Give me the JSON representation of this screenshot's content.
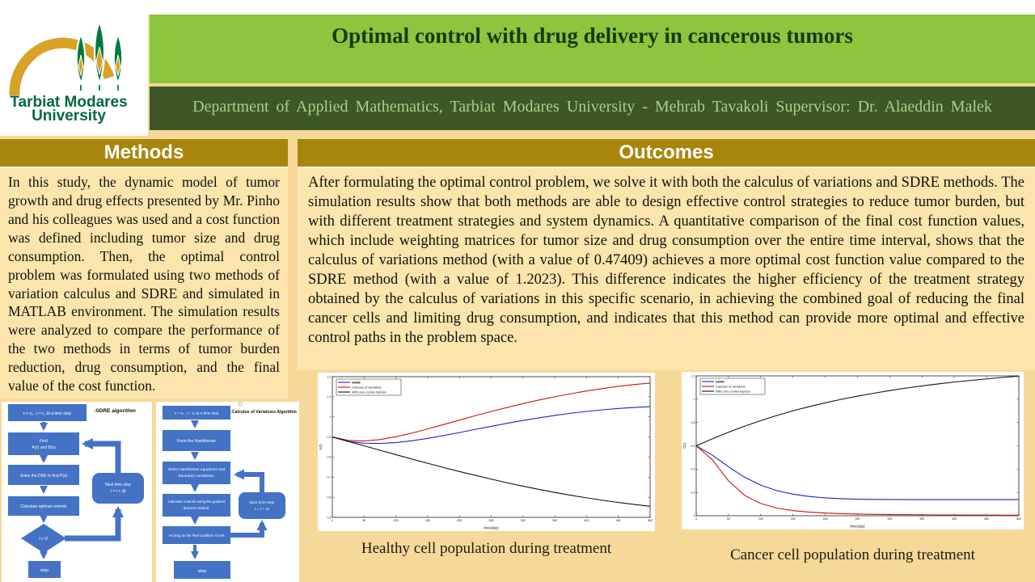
{
  "logo": {
    "line1": "Tarbiat Modares",
    "line2": "University"
  },
  "header": {
    "title": "Optimal control with drug delivery in cancerous tumors",
    "subtitle": "Department of Applied Mathematics, Tarbiat Modares University - Mehrab Tavakoli Supervisor: Dr. Alaeddin Malek",
    "title_bg": "#8cc63e",
    "subtitle_bg": "#3d5826",
    "section_header_bg": "#a8860d"
  },
  "methods": {
    "heading": "Methods",
    "body": "In this study, the dynamic model of tumor growth and drug effects presented by Mr. Pinho and his colleagues was used and a cost function was defined including tumor size and drug consumption. Then, the optimal control problem was formulated using two methods of variation calculus and SDRE and simulated in MATLAB environment. The simulation results were analyzed to compare the performance of the two methods in terms of tumor burden reduction, drug consumption, and the final value of the cost function."
  },
  "outcomes": {
    "heading": "Outcomes",
    "body": "After formulating the optimal control problem, we solve it with both the calculus of variations and SDRE methods. The simulation results show that both methods are able to design effective control strategies to reduce tumor burden, but with different treatment strategies and system dynamics. A quantitative comparison of the final cost function values, which include weighting matrices for tumor size and drug consumption over the entire time interval, shows that the calculus of variations method (with a value of 0.47409) achieves a more optimal cost function value compared to the SDRE method (with a value of 1.2023). This difference indicates the higher efficiency of the treatment strategy obtained by the calculus of variations in this specific scenario, in achieving the combined goal of reducing the final cancer cells and limiting drug consumption, and indicates that this method can provide more optimal and effective control paths in the problem space."
  },
  "flowcharts": {
    "box_color": "#4472c4",
    "sdre": {
      "title": ":SDRE algorithm",
      "init": "x = x₀ , t = t₀  Δt a time step",
      "step1a": "Find",
      "step1b": "A(x) and B(x)",
      "step2": "Solve the DRE to find P(x)",
      "step3": "Calculate optimal controls",
      "decision": "t < tƒ",
      "loop1": "Next time step",
      "loop2": "t = t + Δt",
      "stop": "stop"
    },
    "cov": {
      "title": ":Calculus of Variations Algorithm",
      "init": "x = x₀ , t = t₀  Δt a time step",
      "step1": "Form the Hamiltonian",
      "step2a": "Solve Hamiltonian equations and",
      "step2b": "boundary conditions.",
      "step3a": "Calculate controls using the gradient",
      "step3b": "descent method.",
      "step4": "As long as the final condition is met",
      "loop1": "Next time step",
      "loop2": "t = t + Δt",
      "stop": "stop"
    }
  },
  "chart_data": [
    {
      "type": "line",
      "title": "Healthy cell population during treatment",
      "xlabel": "time(day)",
      "ylabel": "N(t)",
      "xlim": [
        0,
        500
      ],
      "ylim": [
        0.5,
        1.2
      ],
      "xticks": [
        0,
        50,
        100,
        150,
        200,
        250,
        300,
        350,
        400,
        450,
        500
      ],
      "yticks": [
        0.5,
        0.6,
        0.7,
        0.8,
        0.9,
        1,
        1.1,
        1.2
      ],
      "legend_position": "upper left",
      "grid": false,
      "x": [
        0,
        25,
        50,
        75,
        100,
        125,
        150,
        175,
        200,
        225,
        250,
        275,
        300,
        325,
        350,
        375,
        400,
        425,
        450,
        475,
        500
      ],
      "series": [
        {
          "name": "SDRE",
          "color": "#2020cc",
          "values": [
            0.9,
            0.878,
            0.869,
            0.868,
            0.872,
            0.881,
            0.893,
            0.907,
            0.922,
            0.938,
            0.953,
            0.968,
            0.982,
            0.995,
            1.007,
            1.018,
            1.027,
            1.035,
            1.042,
            1.047,
            1.051
          ]
        },
        {
          "name": "Calculus of variations",
          "color": "#cc1212",
          "values": [
            0.9,
            0.883,
            0.88,
            0.887,
            0.901,
            0.919,
            0.94,
            0.962,
            0.984,
            1.006,
            1.027,
            1.047,
            1.066,
            1.084,
            1.1,
            1.115,
            1.129,
            1.141,
            1.152,
            1.161,
            1.168
          ]
        },
        {
          "name": "With zero control fashion",
          "color": "#111111",
          "values": [
            0.9,
            0.878,
            0.856,
            0.834,
            0.812,
            0.79,
            0.769,
            0.748,
            0.728,
            0.709,
            0.69,
            0.672,
            0.655,
            0.639,
            0.624,
            0.61,
            0.597,
            0.585,
            0.574,
            0.564,
            0.555
          ]
        }
      ]
    },
    {
      "type": "line",
      "title": "Cancer cell population during treatment",
      "xlabel": "time(day)",
      "ylabel": "C(t)",
      "xlim": [
        0,
        500
      ],
      "ylim": [
        0,
        1.2
      ],
      "xticks": [
        0,
        50,
        100,
        150,
        200,
        250,
        300,
        350,
        400,
        450,
        500
      ],
      "yticks": [
        0,
        0.2,
        0.4,
        0.6,
        0.8,
        1,
        1.2
      ],
      "legend_position": "upper left",
      "grid": false,
      "x": [
        0,
        25,
        50,
        75,
        100,
        125,
        150,
        175,
        200,
        225,
        250,
        275,
        300,
        325,
        350,
        375,
        400,
        425,
        450,
        475,
        500
      ],
      "series": [
        {
          "name": "SDRE",
          "color": "#2020cc",
          "values": [
            0.6,
            0.52,
            0.42,
            0.33,
            0.262,
            0.215,
            0.185,
            0.165,
            0.153,
            0.146,
            0.142,
            0.14,
            0.139,
            0.138,
            0.138,
            0.138,
            0.138,
            0.138,
            0.138,
            0.138,
            0.138
          ]
        },
        {
          "name": "Calculus of variations",
          "color": "#cc1212",
          "values": [
            0.6,
            0.48,
            0.3,
            0.175,
            0.105,
            0.066,
            0.044,
            0.031,
            0.023,
            0.018,
            0.014,
            0.012,
            0.01,
            0.009,
            0.008,
            0.007,
            0.007,
            0.006,
            0.006,
            0.005,
            0.005
          ]
        },
        {
          "name": "With zero control fashion",
          "color": "#111111",
          "values": [
            0.6,
            0.66,
            0.716,
            0.768,
            0.816,
            0.86,
            0.9,
            0.936,
            0.969,
            0.999,
            1.026,
            1.051,
            1.074,
            1.095,
            1.114,
            1.131,
            1.147,
            1.161,
            1.174,
            1.187,
            1.198
          ]
        }
      ]
    }
  ]
}
